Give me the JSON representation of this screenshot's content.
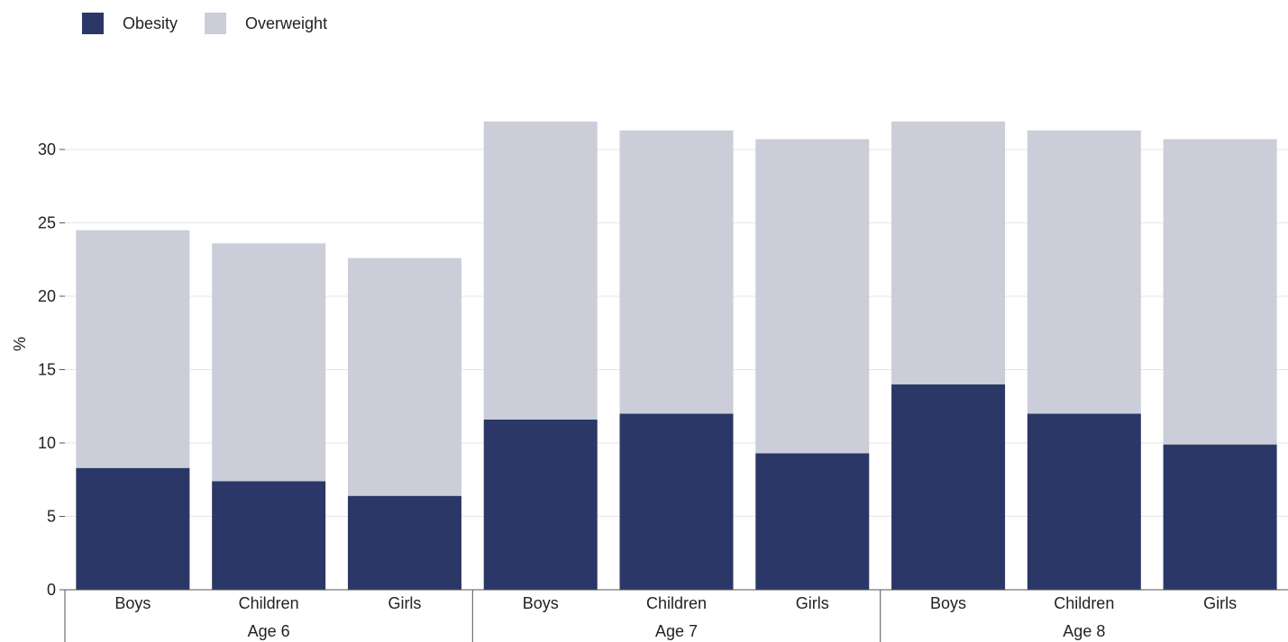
{
  "legend": {
    "items": [
      {
        "label": "Obesity",
        "color": "#2b3766"
      },
      {
        "label": "Overweight",
        "color": "#cbcdd9"
      }
    ]
  },
  "chart_data": {
    "type": "bar",
    "stacked": true,
    "ylabel": "%",
    "ylim": [
      0,
      32
    ],
    "yticks": [
      0,
      5,
      10,
      15,
      20,
      25,
      30
    ],
    "grid": true,
    "legend_position": "top-left",
    "groups": [
      "Age 6",
      "Age 7",
      "Age 8"
    ],
    "categories": [
      "Boys",
      "Children",
      "Girls",
      "Boys",
      "Children",
      "Girls",
      "Boys",
      "Children",
      "Girls"
    ],
    "series": [
      {
        "name": "Obesity",
        "color": "#2b3766",
        "values": [
          8.3,
          7.4,
          6.4,
          11.6,
          12.0,
          9.3,
          14.0,
          12.0,
          9.9
        ]
      },
      {
        "name": "Overweight",
        "color": "#cbcdd9",
        "values": [
          16.2,
          16.2,
          16.2,
          20.3,
          19.3,
          21.4,
          17.9,
          19.3,
          20.8
        ]
      }
    ]
  }
}
